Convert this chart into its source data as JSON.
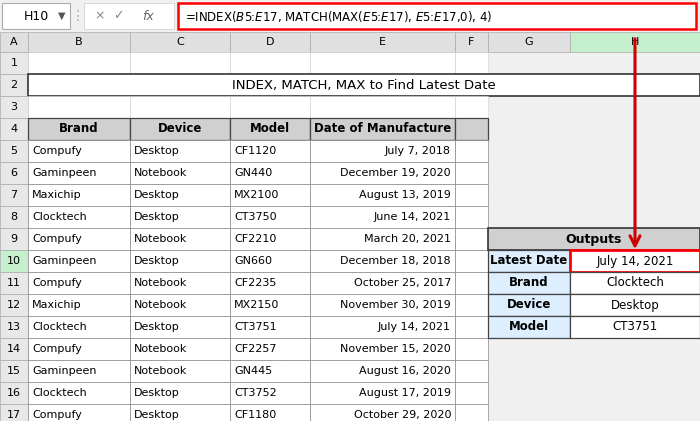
{
  "formula_bar_text": "=INDEX($B$5:$E$17, MATCH(MAX($E$5:$E$17), $E$5:$E$17,0), 4)",
  "cell_ref": "H10",
  "title": "INDEX, MATCH, MAX to Find Latest Date",
  "headers": [
    "Brand",
    "Device",
    "Model",
    "Date of Manufacture"
  ],
  "rows": [
    [
      "Compufy",
      "Desktop",
      "CF1120",
      "July 7, 2018"
    ],
    [
      "Gaminpeen",
      "Notebook",
      "GN440",
      "December 19, 2020"
    ],
    [
      "Maxichip",
      "Desktop",
      "MX2100",
      "August 13, 2019"
    ],
    [
      "Clocktech",
      "Desktop",
      "CT3750",
      "June 14, 2021"
    ],
    [
      "Compufy",
      "Notebook",
      "CF2210",
      "March 20, 2021"
    ],
    [
      "Gaminpeen",
      "Desktop",
      "GN660",
      "December 18, 2018"
    ],
    [
      "Compufy",
      "Notebook",
      "CF2235",
      "October 25, 2017"
    ],
    [
      "Maxichip",
      "Notebook",
      "MX2150",
      "November 30, 2019"
    ],
    [
      "Clocktech",
      "Desktop",
      "CT3751",
      "July 14, 2021"
    ],
    [
      "Compufy",
      "Notebook",
      "CF2257",
      "November 15, 2020"
    ],
    [
      "Gaminpeen",
      "Notebook",
      "GN445",
      "August 16, 2020"
    ],
    [
      "Clocktech",
      "Desktop",
      "CT3752",
      "August 17, 2019"
    ],
    [
      "Compufy",
      "Desktop",
      "CF1180",
      "October 29, 2020"
    ]
  ],
  "output_labels": [
    "Latest Date",
    "Brand",
    "Device",
    "Model"
  ],
  "output_values": [
    "July 14, 2021",
    "Clocktech",
    "Desktop",
    "CT3751"
  ],
  "header_fill": "#d0d0d0",
  "output_header_fill": "#d0d0d0",
  "output_label_fill": "#ddeeff",
  "output_value_fill": "#ffffff",
  "output_highlight_border": "#ff0000",
  "arrow_color": "#cc0000",
  "sheet_bg": "#f0f0f0",
  "col_header_bg": "#e0e0e0",
  "col_header_selected": "#c6efce",
  "row_header_bg": "#e8e8e8",
  "row_header_selected": "#c6efce",
  "cell_bg": "#ffffff",
  "grid_line_color": "#c0c0c0",
  "table_border_color": "#555555",
  "formula_border": "#ff0000"
}
